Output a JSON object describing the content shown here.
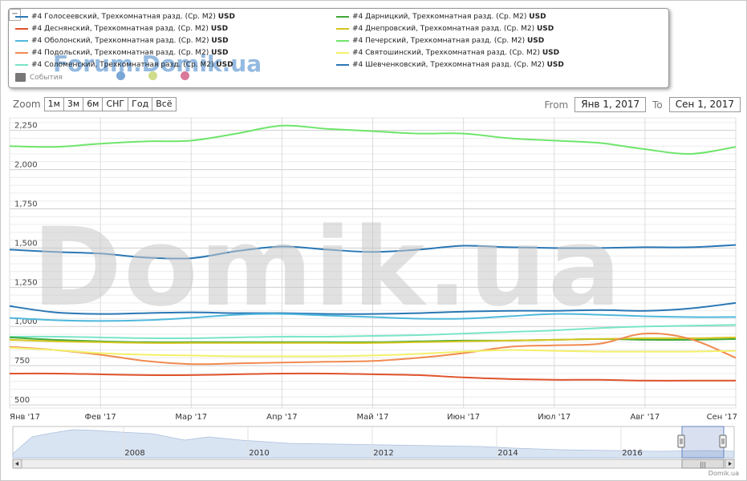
{
  "legend": {
    "collapse_glyph": "−",
    "items": [
      {
        "label": "#4 Голосеевский, Трехкомнатная разд. (Ср. М2)",
        "unit": "USD",
        "color": "#2a77b5"
      },
      {
        "label": "#4 Деснянский, Трехкомнатная разд. (Ср. М2)",
        "unit": "USD",
        "color": "#e0522a"
      },
      {
        "label": "#4 Оболонский, Трехкомнатная разд. (Ср. М2)",
        "unit": "USD",
        "color": "#4fb8dc"
      },
      {
        "label": "#4 Подольский, Трехкомнатная разд. (Ср. М2)",
        "unit": "USD",
        "color": "#f08a50"
      },
      {
        "label": "#4 Соломенский, Трехкомнатная разд. (Ср. М2)",
        "unit": "USD",
        "color": "#7ae5c8"
      },
      {
        "label": "#4 Дарницкий, Трехкомнатная разд. (Ср. М2)",
        "unit": "USD",
        "color": "#3fa83a"
      },
      {
        "label": "#4 Днепровский, Трехкомнатная разд. (Ср. М2)",
        "unit": "USD",
        "color": "#d4c51f"
      },
      {
        "label": "#4 Печерский, Трехкомнатная разд. (Ср. М2)",
        "unit": "USD",
        "color": "#6ee56b"
      },
      {
        "label": "#4 Святошинский, Трехкомнатная разд. (Ср. М2)",
        "unit": "USD",
        "color": "#f3f06a"
      },
      {
        "label": "#4 Шевченковский, Трехкомнатная разд. (Ср. М2)",
        "unit": "USD",
        "color": "#2a77b5"
      }
    ],
    "events_label": "События",
    "event_dots": [
      {
        "color": "#7aa6d6"
      },
      {
        "color": "#d1dc8a"
      },
      {
        "color": "#d97a9a"
      }
    ]
  },
  "watermark": {
    "small": "Forum.Domik.ua",
    "big": "Domik.ua"
  },
  "zoom": {
    "label": "Zoom",
    "buttons": [
      "1м",
      "3м",
      "6м",
      "СНГ",
      "Год",
      "Всё"
    ]
  },
  "range": {
    "from_label": "From",
    "from_value": "Янв 1, 2017",
    "to_label": "To",
    "to_value": "Сен 1, 2017"
  },
  "copyright": "Domik.ua",
  "navigator": {
    "years": [
      "2008",
      "2010",
      "2012",
      "2014",
      "2016"
    ],
    "handle_glyph": "|||"
  },
  "chart_data": {
    "type": "line",
    "x_ticks": [
      "Янв '17",
      "Фев '17",
      "Мар '17",
      "Апр '17",
      "Май '17",
      "Июн '17",
      "Июл '17",
      "Авг '17",
      "Сен '17"
    ],
    "y_ticks": [
      500,
      750,
      1000,
      1250,
      1500,
      1750,
      2000,
      2250
    ],
    "ylim": [
      480,
      2330
    ],
    "xlim": [
      0,
      8
    ],
    "grid": true,
    "legend_position": "top",
    "series": [
      {
        "name": "#4 Печерский, Трехкомнатная разд. (Ср. М2)",
        "color": "#6ee56b",
        "x": [
          0,
          0.5,
          1,
          1.5,
          2,
          2.5,
          3,
          3.5,
          4,
          4.5,
          5,
          5.5,
          6,
          6.5,
          7,
          7.5,
          8
        ],
        "y": [
          2150,
          2145,
          2165,
          2180,
          2185,
          2230,
          2280,
          2260,
          2245,
          2230,
          2230,
          2200,
          2185,
          2170,
          2130,
          2100,
          2145
        ]
      },
      {
        "name": "#4 Голосеевский, Трехкомнатная разд. (Ср. М2)",
        "color": "#2a77b5",
        "x": [
          0,
          0.5,
          1,
          1.5,
          2,
          2.5,
          3,
          3.5,
          4,
          4.5,
          5,
          5.5,
          6,
          6.5,
          7,
          7.5,
          8
        ],
        "y": [
          1490,
          1475,
          1465,
          1440,
          1435,
          1480,
          1510,
          1490,
          1475,
          1490,
          1515,
          1505,
          1500,
          1500,
          1505,
          1505,
          1520
        ]
      },
      {
        "name": "#4 Шевченковский, Трехкомнатная разд. (Ср. М2)",
        "color": "#2a77b5",
        "x": [
          0,
          0.5,
          1,
          1.5,
          2,
          2.5,
          3,
          3.5,
          4,
          4.5,
          5,
          5.5,
          6,
          6.5,
          7,
          7.5,
          8
        ],
        "y": [
          1130,
          1090,
          1080,
          1085,
          1090,
          1085,
          1085,
          1080,
          1080,
          1085,
          1095,
          1100,
          1100,
          1105,
          1100,
          1115,
          1150
        ]
      },
      {
        "name": "#4 Оболонский, Трехкомнатная разд. (Ср. М2)",
        "color": "#4fb8dc",
        "x": [
          0,
          0.5,
          1,
          1.5,
          2,
          2.5,
          3,
          3.5,
          4,
          4.5,
          5,
          5.5,
          6,
          6.5,
          7,
          7.5,
          8
        ],
        "y": [
          1055,
          1040,
          1035,
          1040,
          1055,
          1075,
          1080,
          1070,
          1060,
          1050,
          1050,
          1065,
          1080,
          1075,
          1065,
          1060,
          1060
        ]
      },
      {
        "name": "#4 Соломенский, Трехкомнатная разд. (Ср. М2)",
        "color": "#7ae5c8",
        "x": [
          0,
          0.5,
          1,
          1.5,
          2,
          2.5,
          3,
          3.5,
          4,
          4.5,
          5,
          5.5,
          6,
          6.5,
          7,
          7.5,
          8
        ],
        "y": [
          935,
          935,
          930,
          925,
          925,
          930,
          935,
          935,
          940,
          945,
          955,
          965,
          975,
          990,
          1000,
          1005,
          1010
        ]
      },
      {
        "name": "#4 Дарницкий, Трехкомнатная разд. (Ср. М2)",
        "color": "#3fa83a",
        "x": [
          0,
          0.5,
          1,
          1.5,
          2,
          2.5,
          3,
          3.5,
          4,
          4.5,
          5,
          5.5,
          6,
          6.5,
          7,
          7.5,
          8
        ],
        "y": [
          930,
          915,
          905,
          900,
          900,
          900,
          900,
          900,
          900,
          905,
          910,
          910,
          915,
          920,
          915,
          915,
          920
        ]
      },
      {
        "name": "#4 Днепровский, Трехкомнатная разд. (Ср. М2)",
        "color": "#d4c51f",
        "x": [
          0,
          0.5,
          1,
          1.5,
          2,
          2.5,
          3,
          3.5,
          4,
          4.5,
          5,
          5.5,
          6,
          6.5,
          7,
          7.5,
          8
        ],
        "y": [
          915,
          905,
          900,
          895,
          895,
          895,
          895,
          895,
          895,
          900,
          905,
          910,
          915,
          920,
          925,
          925,
          930
        ]
      },
      {
        "name": "#4 Подольский, Трехкомнатная разд. (Ср. М2)",
        "color": "#f08a50",
        "x": [
          0,
          0.5,
          1,
          1.5,
          2,
          2.5,
          3,
          3.5,
          4,
          4.5,
          5,
          5.5,
          6,
          6.5,
          7,
          7.5,
          8
        ],
        "y": [
          870,
          850,
          820,
          780,
          760,
          765,
          770,
          775,
          780,
          800,
          830,
          870,
          880,
          890,
          955,
          920,
          800
        ]
      },
      {
        "name": "#4 Святошинский, Трехкомнатная разд. (Ср. М2)",
        "color": "#f3f06a",
        "x": [
          0,
          0.5,
          1,
          1.5,
          2,
          2.5,
          3,
          3.5,
          4,
          4.5,
          5,
          5.5,
          6,
          6.5,
          7,
          7.5,
          8
        ],
        "y": [
          865,
          850,
          830,
          820,
          815,
          810,
          810,
          810,
          815,
          825,
          840,
          850,
          845,
          840,
          840,
          840,
          845
        ]
      },
      {
        "name": "#4 Деснянский, Трехкомнатная разд. (Ср. М2)",
        "color": "#e0522a",
        "x": [
          0,
          0.5,
          1,
          1.5,
          2,
          2.5,
          3,
          3.5,
          4,
          4.5,
          5,
          5.5,
          6,
          6.5,
          7,
          7.5,
          8
        ],
        "y": [
          700,
          700,
          695,
          690,
          690,
          695,
          700,
          700,
          695,
          690,
          675,
          665,
          660,
          660,
          655,
          655,
          655
        ]
      }
    ]
  }
}
